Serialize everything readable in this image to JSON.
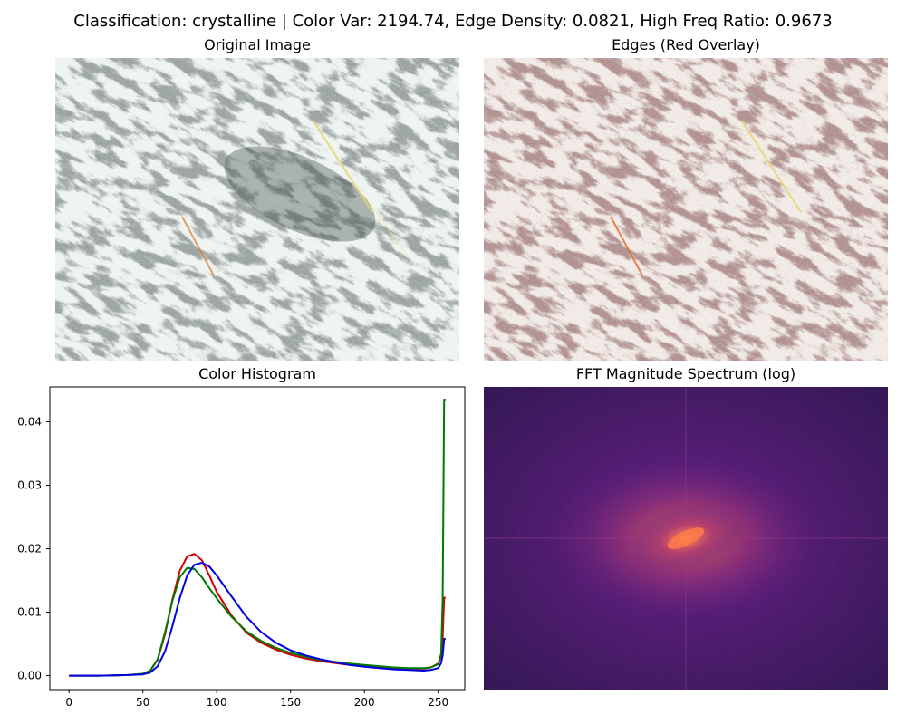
{
  "figure": {
    "suptitle": "Classification: crystalline | Color Var: 2194.74, Edge Density: 0.0821, High Freq Ratio: 0.9673"
  },
  "panels": {
    "original": {
      "title": "Original Image"
    },
    "edges": {
      "title": "Edges (Red Overlay)"
    },
    "fft": {
      "title": "FFT Magnitude Spectrum (log)"
    }
  },
  "chart_data": {
    "type": "line",
    "title": "Color Histogram",
    "xlabel": "",
    "ylabel": "",
    "xlim": [
      -13,
      268
    ],
    "ylim": [
      -0.0022,
      0.0455
    ],
    "xticks": [
      "0",
      "50",
      "100",
      "150",
      "200",
      "250"
    ],
    "yticks": [
      "0.00",
      "0.01",
      "0.02",
      "0.03",
      "0.04"
    ],
    "grid": false,
    "legend": "none",
    "x": [
      0,
      20,
      40,
      50,
      55,
      60,
      65,
      70,
      75,
      80,
      85,
      90,
      95,
      100,
      110,
      120,
      130,
      140,
      150,
      160,
      170,
      180,
      190,
      200,
      210,
      220,
      230,
      240,
      245,
      250,
      252,
      253,
      254,
      255
    ],
    "series": [
      {
        "color": "#d00000",
        "values": [
          0,
          0,
          0.0001,
          0.0003,
          0.0008,
          0.0025,
          0.0065,
          0.012,
          0.0165,
          0.0188,
          0.0192,
          0.0182,
          0.0158,
          0.0132,
          0.0095,
          0.0068,
          0.0052,
          0.0041,
          0.0033,
          0.0027,
          0.0023,
          0.002,
          0.0017,
          0.0015,
          0.0013,
          0.0012,
          0.0011,
          0.0011,
          0.0013,
          0.0019,
          0.003,
          0.006,
          0.0123,
          0.0123
        ]
      },
      {
        "color": "#007a00",
        "values": [
          0,
          0,
          0.0001,
          0.0003,
          0.0008,
          0.0026,
          0.0068,
          0.0118,
          0.0155,
          0.017,
          0.0168,
          0.0155,
          0.0138,
          0.0122,
          0.0093,
          0.007,
          0.0055,
          0.0044,
          0.0036,
          0.003,
          0.0025,
          0.0022,
          0.0019,
          0.0017,
          0.0015,
          0.0013,
          0.0012,
          0.0012,
          0.0013,
          0.0018,
          0.0035,
          0.012,
          0.0435,
          0.0435
        ]
      },
      {
        "color": "#0000e0",
        "values": [
          0,
          0,
          0.0001,
          0.0002,
          0.0005,
          0.0015,
          0.0038,
          0.0078,
          0.0122,
          0.0158,
          0.0175,
          0.0178,
          0.0172,
          0.0158,
          0.0125,
          0.0093,
          0.0069,
          0.0052,
          0.004,
          0.0032,
          0.0026,
          0.0021,
          0.0017,
          0.0014,
          0.0012,
          0.001,
          0.0009,
          0.0008,
          0.0009,
          0.0012,
          0.002,
          0.0032,
          0.0058,
          0.0058
        ]
      }
    ]
  }
}
